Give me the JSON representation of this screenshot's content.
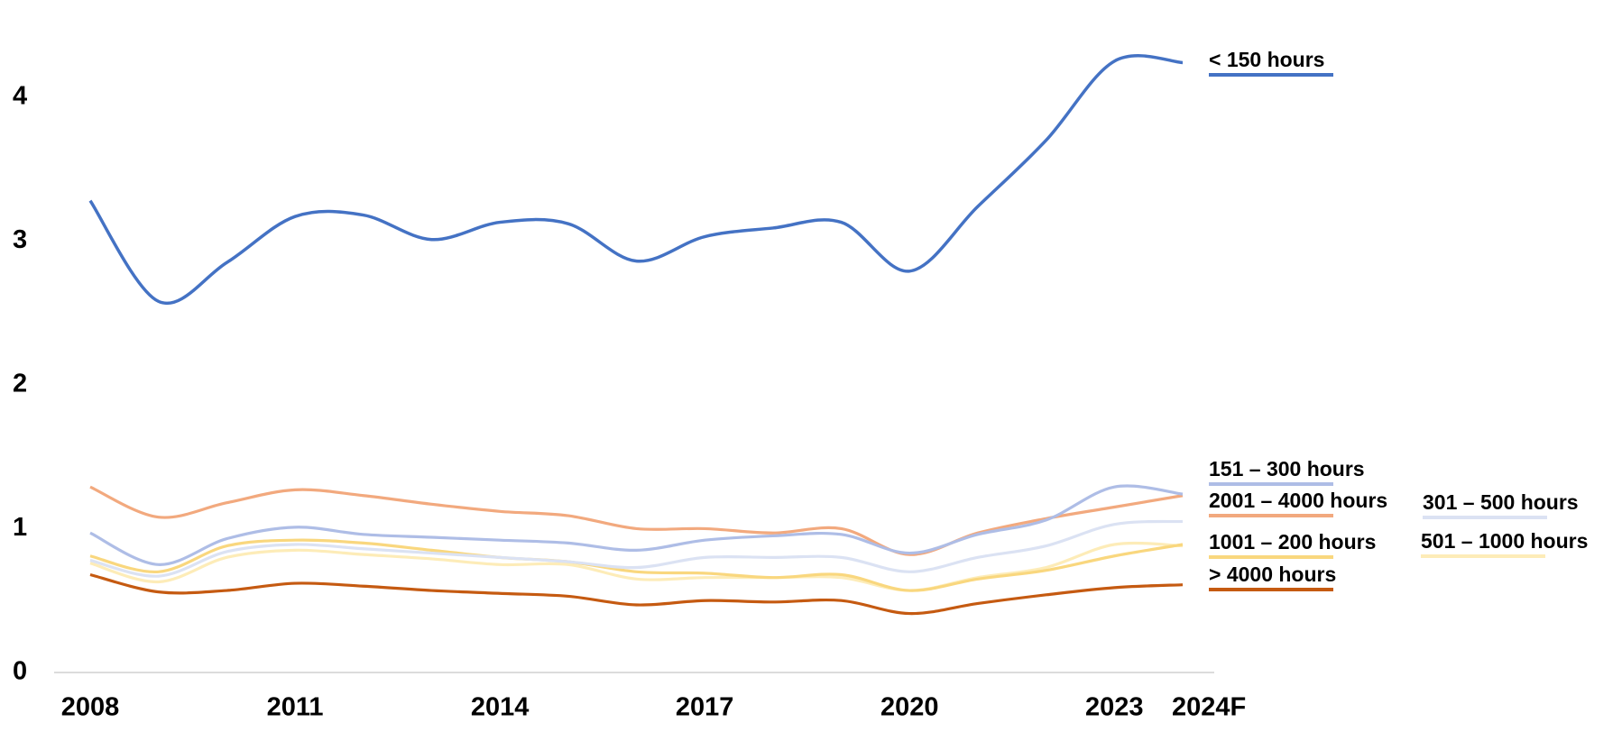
{
  "chart_data": {
    "type": "line",
    "categories": [
      "2008",
      null,
      null,
      "2011",
      null,
      null,
      "2014",
      null,
      null,
      "2017",
      null,
      null,
      "2020",
      null,
      null,
      "2023",
      "2024F"
    ],
    "ylim": [
      0,
      4.6
    ],
    "yticks": [
      0,
      1,
      2,
      3,
      4
    ],
    "series": [
      {
        "name": "< 150 hours",
        "color": "#4472c4",
        "values": [
          3.28,
          2.58,
          2.85,
          3.17,
          3.18,
          3.01,
          3.13,
          3.12,
          2.86,
          3.03,
          3.09,
          3.13,
          2.79,
          3.24,
          3.7,
          4.25,
          4.24
        ]
      },
      {
        "name": "151 – 300 hours",
        "color": "#aebde6",
        "values": [
          0.97,
          0.75,
          0.93,
          1.01,
          0.96,
          0.94,
          0.92,
          0.9,
          0.85,
          0.92,
          0.95,
          0.96,
          0.83,
          0.96,
          1.06,
          1.29,
          1.24
        ]
      },
      {
        "name": "2001 – 4000 hours",
        "color": "#f2a97e",
        "values": [
          1.29,
          1.08,
          1.18,
          1.27,
          1.23,
          1.17,
          1.12,
          1.09,
          1.0,
          1.0,
          0.97,
          1.0,
          0.82,
          0.97,
          1.07,
          1.15,
          1.23
        ]
      },
      {
        "name": "301 – 500 hours",
        "color": "#dbe2f3",
        "values": [
          0.78,
          0.67,
          0.84,
          0.89,
          0.86,
          0.83,
          0.8,
          0.77,
          0.73,
          0.8,
          0.8,
          0.8,
          0.7,
          0.8,
          0.88,
          1.03,
          1.05
        ]
      },
      {
        "name": "1001 – 200 hours",
        "color": "#f9d77e",
        "values": [
          0.81,
          0.7,
          0.88,
          0.92,
          0.9,
          0.85,
          0.8,
          0.77,
          0.7,
          0.69,
          0.66,
          0.68,
          0.57,
          0.65,
          0.71,
          0.81,
          0.89
        ]
      },
      {
        "name": "501 – 1000 hours",
        "color": "#fdecb8",
        "values": [
          0.76,
          0.63,
          0.8,
          0.85,
          0.82,
          0.79,
          0.75,
          0.75,
          0.65,
          0.66,
          0.66,
          0.66,
          0.57,
          0.66,
          0.73,
          0.89,
          0.88
        ]
      },
      {
        "name": "> 4000 hours",
        "color": "#c55a11",
        "values": [
          0.68,
          0.56,
          0.57,
          0.62,
          0.6,
          0.57,
          0.55,
          0.53,
          0.47,
          0.5,
          0.49,
          0.5,
          0.41,
          0.48,
          0.54,
          0.59,
          0.61
        ]
      }
    ]
  }
}
